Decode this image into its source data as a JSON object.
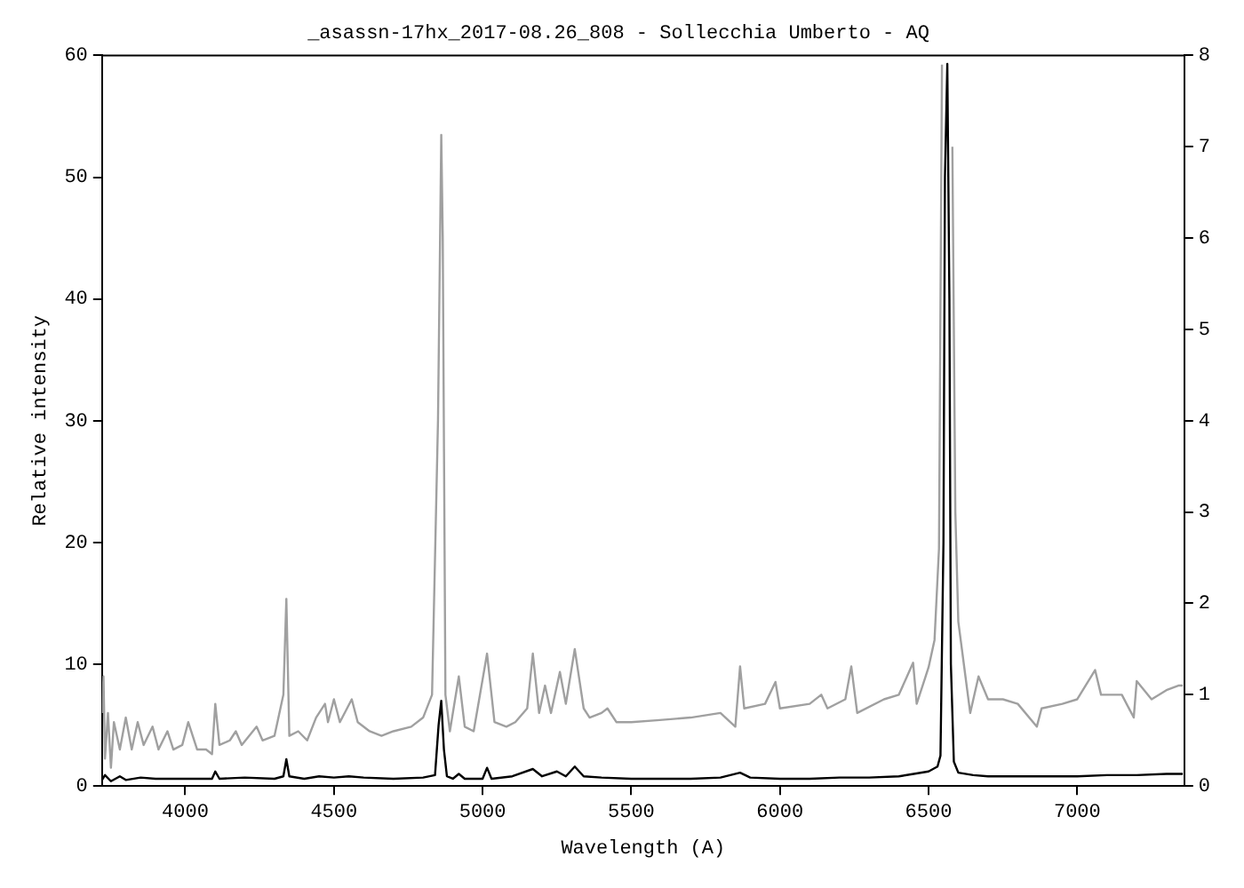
{
  "chart_data": {
    "type": "line",
    "title": "_asassn-17hx_2017-08.26_808 - Sollecchia Umberto - AQ",
    "xlabel": "Wavelength (A)",
    "ylabel": "Relative intensity",
    "xlim": [
      3720,
      7360
    ],
    "xticks": [
      4000,
      4500,
      5000,
      5500,
      6000,
      6500,
      7000
    ],
    "ylim": [
      0,
      60
    ],
    "yticks": [
      0,
      10,
      20,
      30,
      40,
      50,
      60
    ],
    "y2lim": [
      0,
      8
    ],
    "y2ticks": [
      0,
      1,
      2,
      3,
      4,
      5,
      6,
      7,
      8
    ],
    "grid": false,
    "legend": false,
    "marker": "none",
    "series": [
      {
        "color": "#a0a0a0",
        "axis": "y2",
        "x": [
          3720,
          3725,
          3730,
          3740,
          3750,
          3760,
          3780,
          3800,
          3820,
          3840,
          3860,
          3890,
          3910,
          3940,
          3960,
          3990,
          4010,
          4040,
          4070,
          4090,
          4101,
          4115,
          4150,
          4170,
          4190,
          4240,
          4260,
          4300,
          4330,
          4340,
          4350,
          4380,
          4410,
          4440,
          4470,
          4480,
          4500,
          4520,
          4560,
          4580,
          4620,
          4660,
          4700,
          4760,
          4800,
          4830,
          4850,
          4861,
          4866,
          4875,
          4890,
          4920,
          4940,
          4970,
          5015,
          5040,
          5080,
          5110,
          5150,
          5169,
          5190,
          5210,
          5230,
          5260,
          5280,
          5310,
          5340,
          5360,
          5400,
          5420,
          5450,
          5500,
          5586,
          5700,
          5800,
          5850,
          5866,
          5880,
          5950,
          5985,
          6000,
          6100,
          6139,
          6160,
          6220,
          6240,
          6260,
          6350,
          6400,
          6448,
          6460,
          6500,
          6520,
          6535,
          6545,
          6550,
          6575,
          6580,
          6590,
          6600,
          6620,
          6640,
          6668,
          6700,
          6750,
          6800,
          6864,
          6880,
          6950,
          7000,
          7060,
          7080,
          7150,
          7190,
          7200,
          7250,
          7300,
          7340,
          7355
        ],
        "values": [
          0.8,
          1.2,
          0.3,
          0.8,
          0.2,
          0.7,
          0.4,
          0.75,
          0.4,
          0.7,
          0.45,
          0.65,
          0.4,
          0.6,
          0.4,
          0.45,
          0.7,
          0.4,
          0.4,
          0.35,
          0.9,
          0.45,
          0.5,
          0.6,
          0.45,
          0.65,
          0.5,
          0.55,
          1.0,
          2.05,
          0.55,
          0.6,
          0.5,
          0.75,
          0.9,
          0.7,
          0.95,
          0.7,
          0.95,
          0.7,
          0.6,
          0.55,
          0.6,
          0.65,
          0.75,
          1.0,
          4.0,
          7.13,
          6.0,
          1.0,
          0.6,
          1.2,
          0.65,
          0.6,
          1.45,
          0.7,
          0.65,
          0.7,
          0.85,
          1.45,
          0.8,
          1.1,
          0.8,
          1.25,
          0.9,
          1.5,
          0.85,
          0.75,
          0.8,
          0.85,
          0.7,
          0.7,
          0.72,
          0.75,
          0.8,
          0.65,
          1.31,
          0.85,
          0.9,
          1.14,
          0.85,
          0.9,
          1.0,
          0.85,
          0.95,
          1.31,
          0.8,
          0.95,
          1.0,
          1.35,
          0.9,
          1.3,
          1.6,
          2.6,
          7.9,
          null,
          null,
          7.0,
          3.0,
          1.8,
          1.3,
          0.8,
          1.2,
          0.95,
          0.95,
          0.9,
          0.65,
          0.85,
          0.9,
          0.95,
          1.27,
          1.0,
          1.0,
          0.75,
          1.15,
          0.95,
          1.05,
          1.1,
          1.1
        ]
      },
      {
        "color": "#000000",
        "axis": "y",
        "x": [
          3720,
          3730,
          3750,
          3780,
          3800,
          3850,
          3900,
          3950,
          4000,
          4050,
          4090,
          4101,
          4115,
          4200,
          4300,
          4330,
          4340,
          4350,
          4400,
          4450,
          4500,
          4550,
          4600,
          4700,
          4800,
          4840,
          4852,
          4861,
          4870,
          4880,
          4900,
          4920,
          4940,
          5000,
          5015,
          5030,
          5100,
          5169,
          5200,
          5250,
          5280,
          5310,
          5340,
          5400,
          5500,
          5600,
          5700,
          5800,
          5866,
          5900,
          6000,
          6100,
          6200,
          6300,
          6400,
          6450,
          6500,
          6530,
          6540,
          6550,
          6555,
          6563,
          6570,
          6575,
          6585,
          6600,
          6650,
          6700,
          6800,
          6900,
          7000,
          7100,
          7200,
          7300,
          7355
        ],
        "values": [
          0.5,
          0.9,
          0.4,
          0.8,
          0.5,
          0.7,
          0.6,
          0.6,
          0.6,
          0.6,
          0.6,
          1.2,
          0.6,
          0.7,
          0.6,
          0.8,
          2.2,
          0.8,
          0.6,
          0.8,
          0.7,
          0.8,
          0.7,
          0.6,
          0.7,
          0.9,
          5.0,
          7.0,
          3.0,
          0.8,
          0.6,
          1.0,
          0.6,
          0.6,
          1.5,
          0.6,
          0.8,
          1.4,
          0.8,
          1.2,
          0.8,
          1.6,
          0.8,
          0.7,
          0.6,
          0.6,
          0.6,
          0.7,
          1.1,
          0.7,
          0.6,
          0.6,
          0.7,
          0.7,
          0.8,
          1.0,
          1.2,
          1.6,
          2.5,
          20,
          50,
          59.3,
          40,
          10,
          2.0,
          1.1,
          0.9,
          0.8,
          0.8,
          0.8,
          0.8,
          0.9,
          0.9,
          1.0,
          1.0
        ]
      }
    ]
  }
}
